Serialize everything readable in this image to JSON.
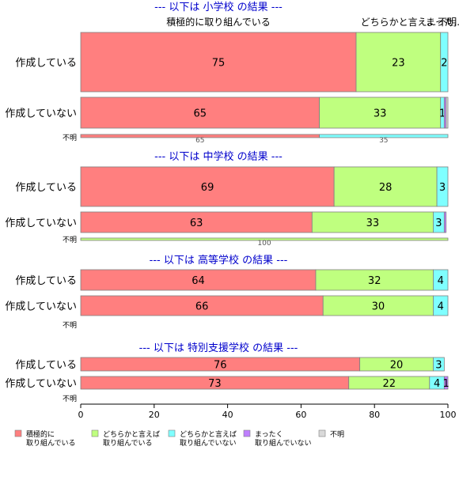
{
  "chart_data": {
    "type": "bar",
    "orientation": "horizontal",
    "stacked": true,
    "xlim": [
      0,
      100
    ],
    "x_ticks": [
      "0",
      "20",
      "40",
      "60",
      "80",
      "100"
    ],
    "colors": {
      "積極的に取り組んでいる": "#ff7f7f",
      "どちらかと言えば取り組んでいる": "#bfff7f",
      "どちらかと言えば取り組んでいない": "#7fffff",
      "まったく取り組んでいない": "#bf7fff",
      "不明": "#d9d9d9",
      "title": "#0000cc",
      "bar_border": "#808080"
    },
    "series_order": [
      "積極的に取り組んでいる",
      "どちらかと言えば取り組んでいる",
      "どちらかと言えば取り組んでいない",
      "まったく取り組んでいない",
      "不明"
    ],
    "top_annotations": [
      {
        "text": "積極的に取り組んでいる",
        "x": 37.5
      },
      {
        "text": "どちらかと言え...",
        "x": 86.5
      },
      {
        "text": "まった...",
        "x": 99
      },
      {
        "text": "不明",
        "x": 99.8
      }
    ],
    "panels": [
      {
        "title": "--- 以下は 小学校 の結果 ---",
        "rows": [
          {
            "label": "作成している",
            "values": [
              75,
              23,
              2,
              0,
              0
            ],
            "labels": [
              "75",
              "23",
              "2",
              "",
              ""
            ]
          },
          {
            "label": "作成していない",
            "values": [
              65,
              33,
              1,
              0.5,
              0.5
            ],
            "labels": [
              "65",
              "33",
              "1",
              "",
              ""
            ]
          }
        ],
        "fumei": {
          "label": "不明",
          "values": [
            65,
            0,
            35,
            0,
            0
          ],
          "labels": [
            "65",
            "",
            "35",
            "",
            ""
          ]
        }
      },
      {
        "title": "--- 以下は 中学校 の結果 ---",
        "rows": [
          {
            "label": "作成している",
            "values": [
              69,
              28,
              3,
              0,
              0
            ],
            "labels": [
              "69",
              "28",
              "3",
              "",
              ""
            ]
          },
          {
            "label": "作成していない",
            "values": [
              63,
              33,
              3,
              0.5,
              0
            ],
            "labels": [
              "63",
              "33",
              "3",
              "",
              ""
            ]
          }
        ],
        "fumei": {
          "label": "不明",
          "values": [
            0,
            100,
            0,
            0,
            0
          ],
          "labels": [
            "",
            "100",
            "",
            "",
            ""
          ]
        }
      },
      {
        "title": "--- 以下は 高等学校 の結果 ---",
        "rows": [
          {
            "label": "作成している",
            "values": [
              64,
              32,
              4,
              0,
              0
            ],
            "labels": [
              "64",
              "32",
              "4",
              "",
              ""
            ]
          },
          {
            "label": "作成していない",
            "values": [
              66,
              30,
              4,
              0,
              0
            ],
            "labels": [
              "66",
              "30",
              "4",
              "",
              ""
            ]
          }
        ],
        "fumei": {
          "label": "不明",
          "values": [],
          "labels": []
        }
      },
      {
        "title": "--- 以下は 特別支援学校 の結果 ---",
        "rows": [
          {
            "label": "作成している",
            "values": [
              76,
              20,
              3,
              0,
              0
            ],
            "labels": [
              "76",
              "20",
              "3",
              "",
              ""
            ]
          },
          {
            "label": "作成していない",
            "values": [
              73,
              22,
              4,
              1,
              0
            ],
            "labels": [
              "73",
              "22",
              "4",
              "1",
              ""
            ]
          }
        ],
        "fumei": {
          "label": "不明",
          "values": [],
          "labels": []
        }
      }
    ],
    "legend": [
      {
        "lines": [
          "積極的に",
          "取り組んでいる"
        ]
      },
      {
        "lines": [
          "どちらかと言えば",
          "取り組んでいる"
        ]
      },
      {
        "lines": [
          "どちらかと言えば",
          "取り組んでいない"
        ]
      },
      {
        "lines": [
          "まったく",
          "取り組んでいない"
        ]
      },
      {
        "lines": [
          "不明"
        ]
      }
    ]
  }
}
